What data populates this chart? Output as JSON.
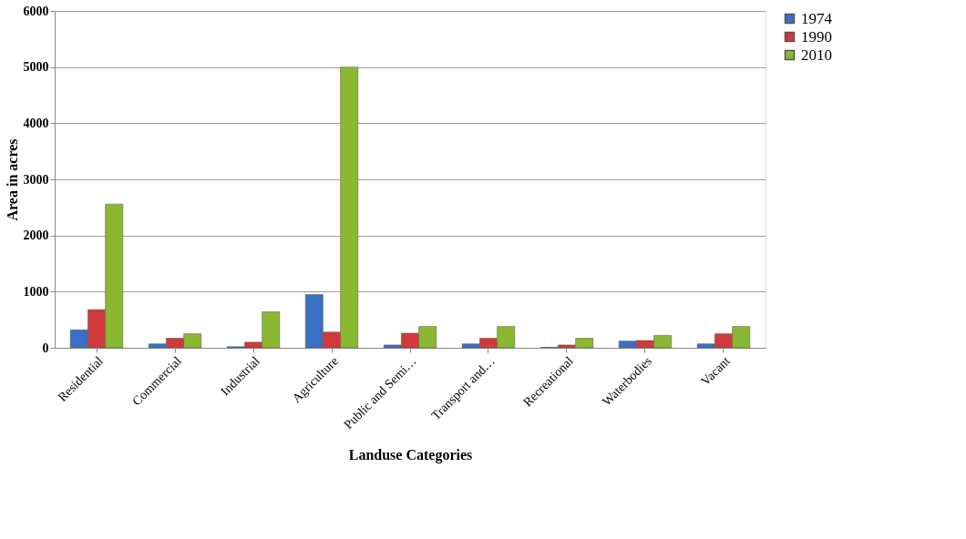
{
  "chart_data": {
    "type": "bar",
    "xlabel": "Landuse Categories",
    "ylabel": "Area in acres",
    "categories": [
      "Residential",
      "Commercial",
      "Industrial",
      "Agriculture",
      "Public and Semi…",
      "Transport and…",
      "Recreational",
      "Waterbodies",
      "Vacant"
    ],
    "series": [
      {
        "name": "1974",
        "color": "#3b6fc4",
        "values": [
          320,
          70,
          20,
          950,
          50,
          70,
          10,
          120,
          70
        ]
      },
      {
        "name": "1990",
        "color": "#d03a3a",
        "values": [
          680,
          170,
          100,
          280,
          260,
          170,
          50,
          130,
          250
        ]
      },
      {
        "name": "2010",
        "color": "#8ab832",
        "values": [
          2560,
          250,
          640,
          5000,
          380,
          380,
          170,
          220,
          380
        ]
      }
    ],
    "ylim": [
      0,
      6000
    ],
    "yticks": [
      0,
      1000,
      2000,
      3000,
      4000,
      5000,
      6000
    ],
    "grid": "y",
    "legend": "right"
  }
}
